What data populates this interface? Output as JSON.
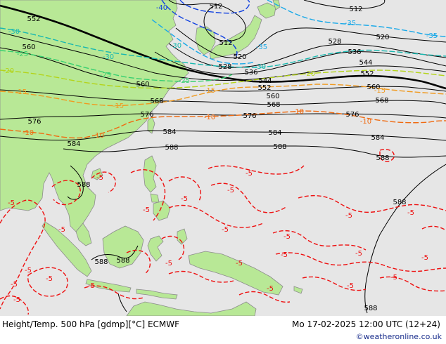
{
  "footer": {
    "title": "Height/Temp. 500 hPa [gdmp][°C] ECMWF",
    "datetime": "Mo 17-02-2025 12:00 UTC (12+24)",
    "credit": "©weatheronline.co.uk"
  },
  "colors": {
    "ocean": "#e6e6e6",
    "land": "#b8e896",
    "coast": "#8c8c8c",
    "height_contour": "#000000",
    "contour_552": "#000000",
    "temp_minus5": "#ee1010",
    "temp_minus10": "#f06a10",
    "temp_minus15": "#f09a20",
    "temp_minus20": "#b4d41a",
    "temp_minus25": "#38d070",
    "temp_minus30": "#18b8b0",
    "temp_minus35": "#18a8e8",
    "temp_minus40": "#1040e0"
  },
  "height_labels": [
    "512",
    "512",
    "512",
    "520",
    "520",
    "528",
    "528",
    "536",
    "536",
    "544",
    "544",
    "552",
    "552",
    "552",
    "560",
    "560",
    "560",
    "560",
    "568",
    "568",
    "568",
    "576",
    "576",
    "576",
    "576",
    "584",
    "584",
    "584",
    "584",
    "588",
    "588",
    "588",
    "588",
    "588",
    "588",
    "588",
    "588"
  ],
  "temp_labels": [
    "-40",
    "-35",
    "-35",
    "-35",
    "-30",
    "-30",
    "-30",
    "-30",
    "-25",
    "-25",
    "-25",
    "-20",
    "-20",
    "-15",
    "-15",
    "-15",
    "-15",
    "-10",
    "-10",
    "-10",
    "-10",
    "-10",
    "-5",
    "-5",
    "-5",
    "-5",
    "-5",
    "-5",
    "-5",
    "-5",
    "-5",
    "-5",
    "-5",
    "-5",
    "-5",
    "-5",
    "-5",
    "-5",
    "-5",
    "-5",
    "-5",
    "-5",
    "-5",
    "-5",
    "-5",
    "-5"
  ]
}
